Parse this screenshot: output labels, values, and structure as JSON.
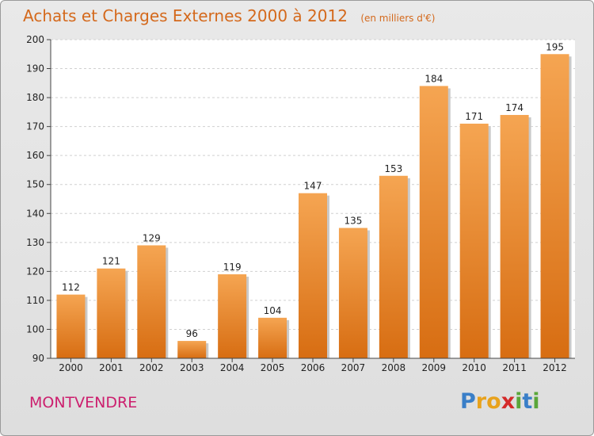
{
  "chart_data": {
    "type": "bar",
    "title": "Achats et Charges Externes 2000 à 2012",
    "subtitle": "(en milliers d'€)",
    "categories": [
      "2000",
      "2001",
      "2002",
      "2003",
      "2004",
      "2005",
      "2006",
      "2007",
      "2008",
      "2009",
      "2010",
      "2011",
      "2012"
    ],
    "values": [
      112,
      121,
      129,
      96,
      119,
      104,
      147,
      135,
      153,
      184,
      171,
      174,
      195
    ],
    "ylim": [
      90,
      200
    ],
    "yticks": [
      90,
      100,
      110,
      120,
      130,
      140,
      150,
      160,
      170,
      180,
      190,
      200
    ],
    "grid": true,
    "bar_color": "#f08c2e"
  },
  "commune": "MONTVENDRE",
  "logo": {
    "letters": [
      "P",
      "r",
      "o",
      "x",
      "i",
      "t",
      "i"
    ],
    "colors": [
      "#3a7fc8",
      "#e8a21c",
      "#e8a21c",
      "#d42a2a",
      "#5aa63a",
      "#3a7fc8",
      "#5aa63a"
    ]
  }
}
